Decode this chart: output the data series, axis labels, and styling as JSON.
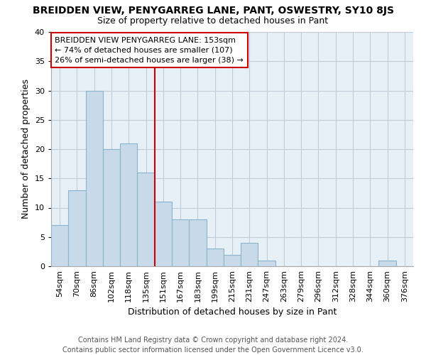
{
  "title": "BREIDDEN VIEW, PENYGARREG LANE, PANT, OSWESTRY, SY10 8JS",
  "subtitle": "Size of property relative to detached houses in Pant",
  "xlabel": "Distribution of detached houses by size in Pant",
  "ylabel": "Number of detached properties",
  "footer_line1": "Contains HM Land Registry data © Crown copyright and database right 2024.",
  "footer_line2": "Contains public sector information licensed under the Open Government Licence v3.0.",
  "categories": [
    "54sqm",
    "70sqm",
    "86sqm",
    "102sqm",
    "118sqm",
    "135sqm",
    "151sqm",
    "167sqm",
    "183sqm",
    "199sqm",
    "215sqm",
    "231sqm",
    "247sqm",
    "263sqm",
    "279sqm",
    "296sqm",
    "312sqm",
    "328sqm",
    "344sqm",
    "360sqm",
    "376sqm"
  ],
  "values": [
    7,
    13,
    30,
    20,
    21,
    16,
    11,
    8,
    8,
    3,
    2,
    4,
    1,
    0,
    0,
    0,
    0,
    0,
    0,
    1,
    0
  ],
  "bar_color": "#c8daea",
  "bar_edge_color": "#8ab4cc",
  "bar_edge_width": 0.8,
  "property_line_index": 6,
  "property_line_color": "#cc0000",
  "ylim": [
    0,
    40
  ],
  "yticks": [
    0,
    5,
    10,
    15,
    20,
    25,
    30,
    35,
    40
  ],
  "annotation_text": "BREIDDEN VIEW PENYGARREG LANE: 153sqm\n← 74% of detached houses are smaller (107)\n26% of semi-detached houses are larger (38) →",
  "annotation_box_color": "#ffffff",
  "annotation_box_edge": "#cc0000",
  "grid_color": "#c0cdd8",
  "background_color": "#e8f0f7",
  "title_fontsize": 10,
  "subtitle_fontsize": 9,
  "xlabel_fontsize": 9,
  "ylabel_fontsize": 9,
  "tick_fontsize": 8,
  "annotation_fontsize": 8,
  "footer_fontsize": 7
}
